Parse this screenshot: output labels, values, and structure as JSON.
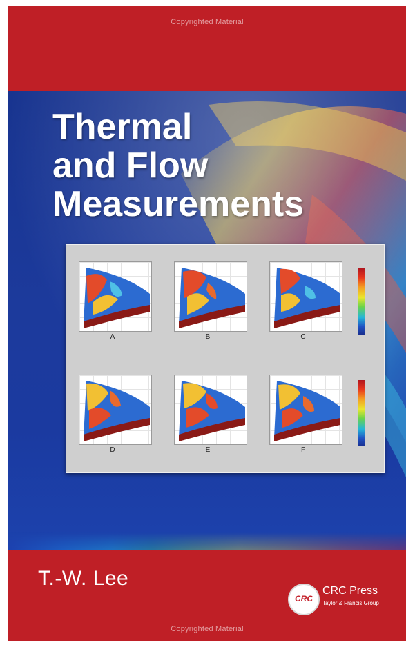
{
  "watermark": {
    "top": "Copyrighted Material",
    "bottom": "Copyrighted Material"
  },
  "title": {
    "line1": "Thermal",
    "line2": "and Flow",
    "line3": "Measurements"
  },
  "author": "T.-W. Lee",
  "publisher": {
    "logo_text": "CRC",
    "name": "CRC Press",
    "subtitle": "Taylor & Francis Group"
  },
  "figure": {
    "panels": [
      "A",
      "B",
      "C",
      "D",
      "E",
      "F"
    ]
  },
  "colors": {
    "red_band": "#bf1f26",
    "blue_band": "#1c3a9c",
    "text": "#ffffff"
  }
}
